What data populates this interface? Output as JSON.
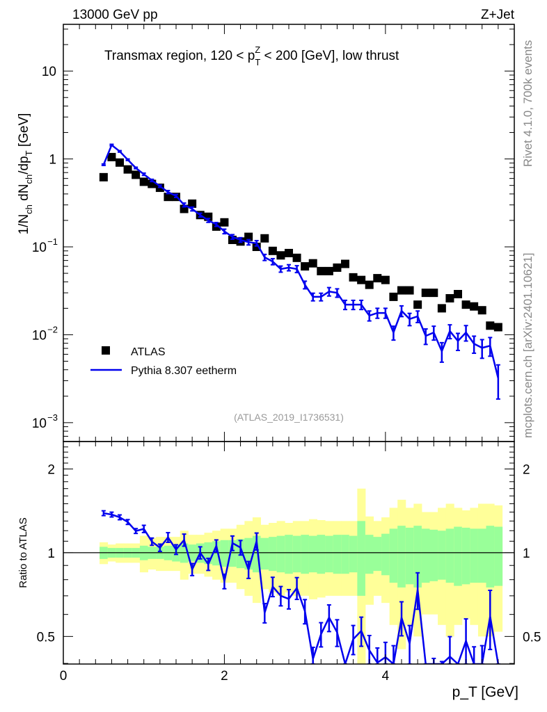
{
  "header": {
    "left": "13000 GeV pp",
    "right": "Z+Jet"
  },
  "side_labels": {
    "top": "Rivet 4.1.0,  700k events",
    "bottom": "mcplots.cern.ch [arXiv:2401.10621]"
  },
  "chart_data": {
    "type": "line",
    "title": "Transmax region, 120 < p_T^Z < 200 [GeV], low thrust",
    "title_parts": {
      "a": "Transmax region, 120 < p",
      "sub": "T",
      "sup": "Z",
      "b": " < 200 [GeV], low thrust"
    },
    "xlabel": "p_T [GeV]",
    "xlabel_parts": {
      "main": "p",
      "sub": "T",
      "unit": " [GeV]"
    },
    "ylabel": "1/N_ch dN_ch/dp_T [GeV]",
    "ylabel_parts": {
      "a": "1/N",
      "s1": "ch",
      "b": " dN",
      "s2": "ch",
      "c": "/dp",
      "s3": "T",
      "d": " [GeV]"
    },
    "ratio_ylabel": "Ratio to ATLAS",
    "analysis_label": "(ATLAS_2019_I1736531)",
    "xlim": [
      0,
      5.6
    ],
    "ylim": [
      0.00061,
      34
    ],
    "yscale": "log",
    "ratio_ylim": [
      0.398,
      2.51
    ],
    "ratio_yscale": "log",
    "x_ticks": [
      {
        "v": 0,
        "label": "0"
      },
      {
        "v": 2,
        "label": "2"
      },
      {
        "v": 4,
        "label": "4"
      }
    ],
    "y_ticks": [
      {
        "v": 10,
        "label": "10"
      },
      {
        "v": 1,
        "label": "1"
      },
      {
        "v": 0.1,
        "label": "10",
        "exp": "−1"
      },
      {
        "v": 0.01,
        "label": "10",
        "exp": "−2"
      },
      {
        "v": 0.001,
        "label": "10",
        "exp": "−3"
      }
    ],
    "ratio_ticks": [
      {
        "v": 2,
        "label": "2"
      },
      {
        "v": 1,
        "label": "1"
      },
      {
        "v": 0.5,
        "label": "0.5"
      }
    ],
    "legend_position": "lower-left",
    "x": [
      0.5,
      0.6,
      0.7,
      0.8,
      0.9,
      1.0,
      1.1,
      1.2,
      1.3,
      1.4,
      1.5,
      1.6,
      1.7,
      1.8,
      1.9,
      2.0,
      2.1,
      2.2,
      2.3,
      2.4,
      2.5,
      2.6,
      2.7,
      2.8,
      2.9,
      3.0,
      3.1,
      3.2,
      3.3,
      3.4,
      3.5,
      3.6,
      3.7,
      3.8,
      3.9,
      4.0,
      4.1,
      4.2,
      4.3,
      4.4,
      4.5,
      4.6,
      4.7,
      4.8,
      4.9,
      5.0,
      5.1,
      5.2,
      5.3,
      5.4
    ],
    "bin_width": 0.1,
    "series": [
      {
        "name": "ATLAS",
        "color": "#000000",
        "marker": "square",
        "values": [
          0.62,
          1.05,
          0.91,
          0.76,
          0.66,
          0.55,
          0.52,
          0.47,
          0.37,
          0.37,
          0.27,
          0.31,
          0.23,
          0.22,
          0.17,
          0.19,
          0.12,
          0.115,
          0.13,
          0.1,
          0.125,
          0.09,
          0.08,
          0.085,
          0.075,
          0.06,
          0.065,
          0.053,
          0.053,
          0.058,
          0.064,
          0.045,
          0.042,
          0.037,
          0.044,
          0.042,
          0.027,
          0.032,
          0.032,
          0.022,
          0.03,
          0.03,
          0.02,
          0.026,
          0.029,
          0.022,
          0.021,
          0.019,
          0.0127,
          0.0122
        ],
        "stat_rel_err": [
          0.05,
          0.04,
          0.04,
          0.04,
          0.04,
          0.06,
          0.05,
          0.05,
          0.06,
          0.07,
          0.08,
          0.07,
          0.08,
          0.09,
          0.1,
          0.11,
          0.11,
          0.12,
          0.13,
          0.15,
          0.13,
          0.14,
          0.15,
          0.16,
          0.15,
          0.16,
          0.15,
          0.16,
          0.15,
          0.16,
          0.16,
          0.15,
          0.3,
          0.16,
          0.14,
          0.17,
          0.22,
          0.25,
          0.23,
          0.25,
          0.22,
          0.21,
          0.2,
          0.22,
          0.24,
          0.23,
          0.22,
          0.22,
          0.25,
          0.24
        ],
        "total_rel_err": [
          0.09,
          0.07,
          0.08,
          0.08,
          0.08,
          0.15,
          0.13,
          0.14,
          0.14,
          0.14,
          0.2,
          0.16,
          0.16,
          0.18,
          0.2,
          0.22,
          0.22,
          0.26,
          0.3,
          0.34,
          0.26,
          0.28,
          0.3,
          0.28,
          0.3,
          0.3,
          0.32,
          0.31,
          0.3,
          0.3,
          0.3,
          0.3,
          0.7,
          0.35,
          0.3,
          0.34,
          0.45,
          0.55,
          0.45,
          0.5,
          0.4,
          0.4,
          0.45,
          0.5,
          0.45,
          0.42,
          0.45,
          0.5,
          0.5,
          0.48
        ]
      },
      {
        "name": "Pythia 8.307 eetherm",
        "color": "#0000ee",
        "marker": "line",
        "values": [
          0.86,
          1.44,
          1.22,
          0.98,
          0.79,
          0.67,
          0.57,
          0.49,
          0.42,
          0.38,
          0.3,
          0.27,
          0.23,
          0.2,
          0.18,
          0.15,
          0.13,
          0.12,
          0.113,
          0.11,
          0.076,
          0.068,
          0.056,
          0.058,
          0.056,
          0.037,
          0.027,
          0.027,
          0.031,
          0.03,
          0.022,
          0.022,
          0.022,
          0.0165,
          0.0177,
          0.0177,
          0.0106,
          0.0187,
          0.0151,
          0.0162,
          0.0097,
          0.0106,
          0.0065,
          0.011,
          0.0085,
          0.0106,
          0.0079,
          0.0071,
          0.0075,
          0.0032
        ],
        "rel_err": [
          0.02,
          0.02,
          0.02,
          0.02,
          0.02,
          0.03,
          0.03,
          0.03,
          0.04,
          0.04,
          0.05,
          0.05,
          0.05,
          0.05,
          0.05,
          0.06,
          0.06,
          0.06,
          0.07,
          0.07,
          0.08,
          0.08,
          0.08,
          0.08,
          0.09,
          0.1,
          0.1,
          0.1,
          0.11,
          0.11,
          0.12,
          0.12,
          0.12,
          0.13,
          0.13,
          0.13,
          0.18,
          0.14,
          0.16,
          0.15,
          0.2,
          0.18,
          0.25,
          0.18,
          0.22,
          0.2,
          0.22,
          0.24,
          0.24,
          0.42
        ]
      }
    ]
  }
}
